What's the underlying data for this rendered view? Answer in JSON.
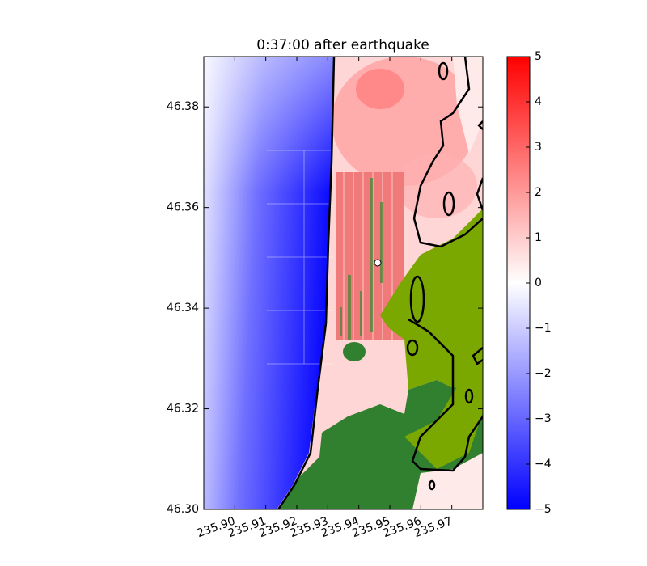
{
  "chart_data": {
    "type": "heatmap",
    "title": "0:37:00 after earthquake",
    "xlim": [
      235.89,
      235.98
    ],
    "xticks": [
      {
        "value": 235.9,
        "label": "235.90"
      },
      235.91,
      235.92,
      235.93,
      235.94,
      235.95,
      235.96,
      235.97
    ],
    "ylim": [
      46.3,
      46.39
    ],
    "yticks": [
      {
        "value": 46.3,
        "label": "46.30"
      },
      46.32,
      46.34,
      46.36,
      46.38
    ],
    "colorbar": {
      "lim": [
        -5,
        5
      ],
      "ticks": [
        {
          "value": -5,
          "label": "−5"
        },
        {
          "value": -4,
          "label": "−4"
        },
        {
          "value": -3,
          "label": "−3"
        },
        {
          "value": -2,
          "label": "−2"
        },
        {
          "value": -1,
          "label": "−1"
        },
        0,
        1,
        2,
        3,
        4,
        5
      ],
      "colors": [
        "#0000ff",
        "#ffffff",
        "#ff0000"
      ]
    }
  }
}
